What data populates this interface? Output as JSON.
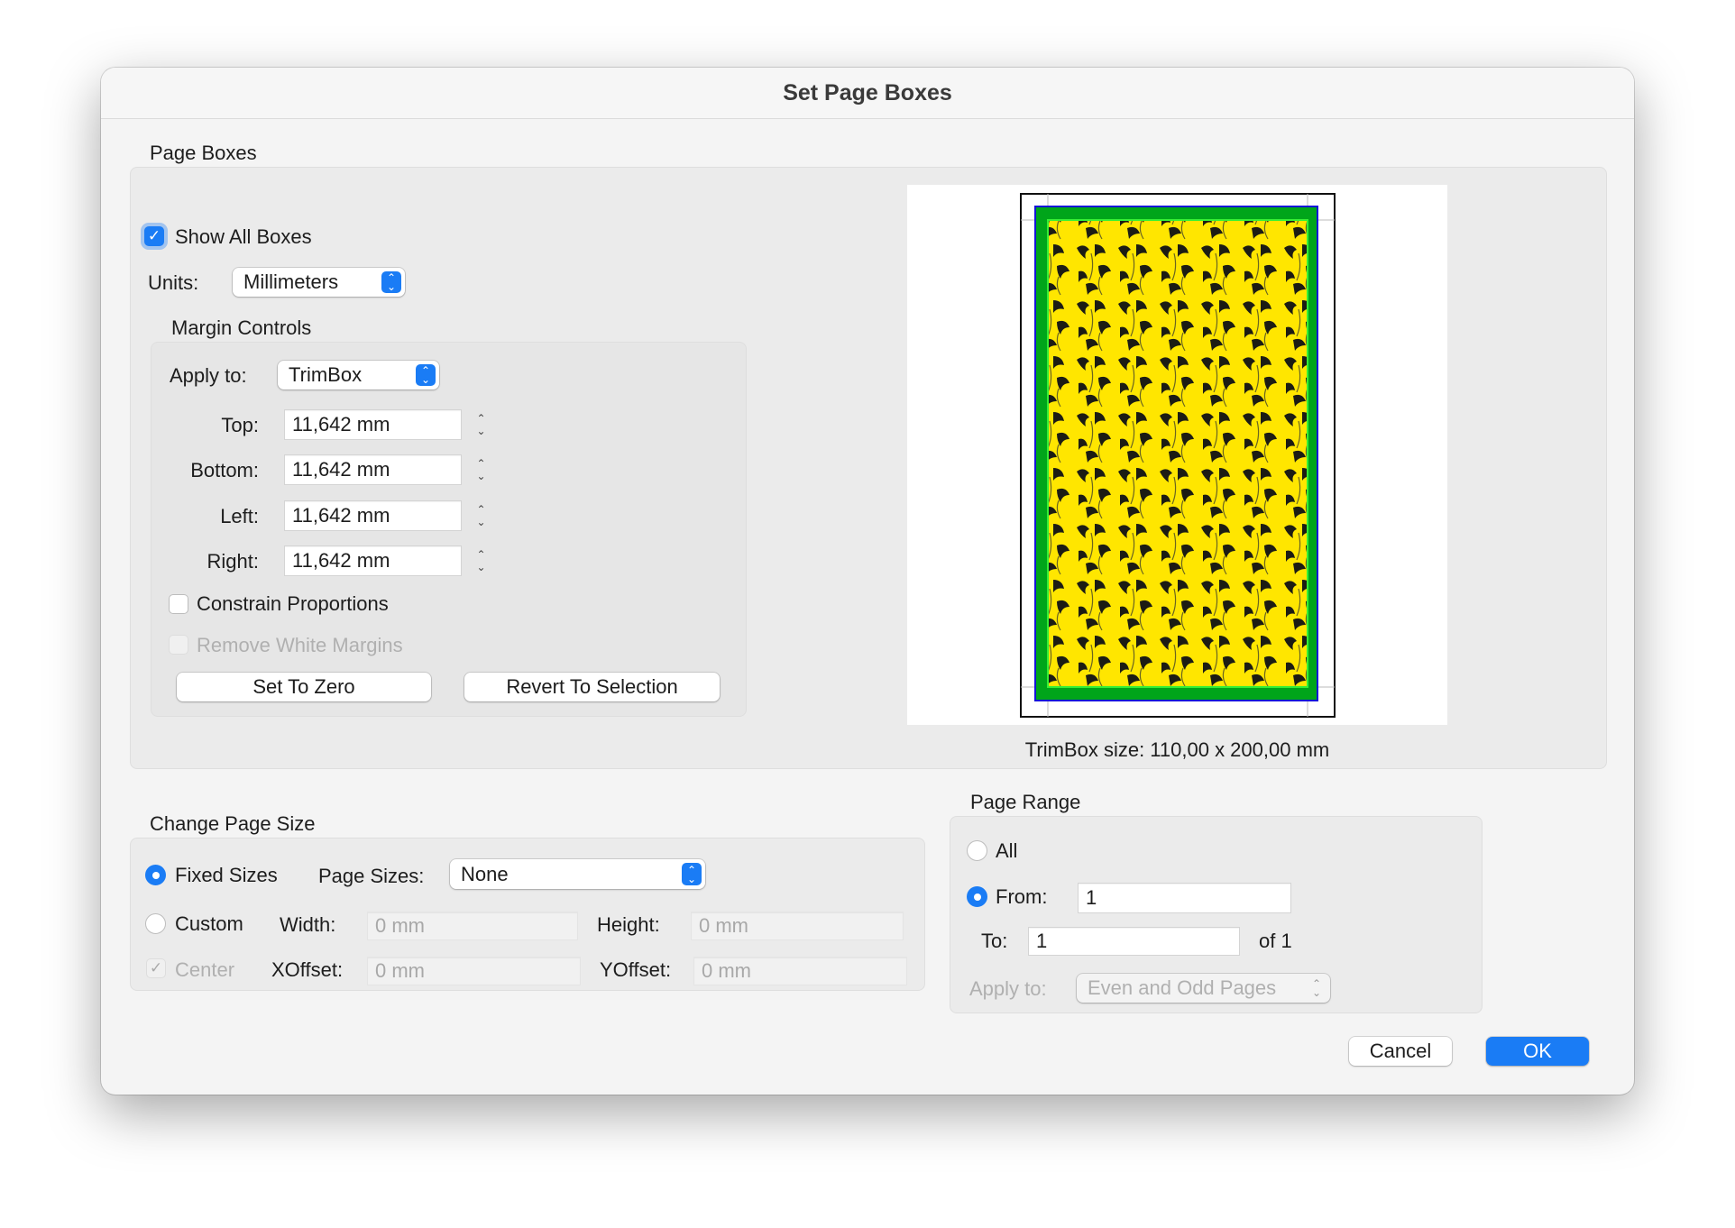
{
  "window": {
    "title": "Set Page Boxes"
  },
  "page_boxes": {
    "label": "Page Boxes",
    "show_all_boxes": {
      "label": "Show All Boxes",
      "checked": true
    },
    "units": {
      "label": "Units:",
      "value": "Millimeters"
    },
    "margin_controls": {
      "label": "Margin Controls",
      "apply_to": {
        "label": "Apply to:",
        "value": "TrimBox"
      },
      "fields": [
        {
          "label": "Top:",
          "value": "11,642 mm"
        },
        {
          "label": "Bottom:",
          "value": "11,642 mm"
        },
        {
          "label": "Left:",
          "value": "11,642 mm"
        },
        {
          "label": "Right:",
          "value": "11,642 mm"
        }
      ],
      "constrain_proportions": {
        "label": "Constrain Proportions",
        "checked": false
      },
      "remove_white_margins": {
        "label": "Remove White Margins",
        "checked": false,
        "enabled": false
      },
      "set_to_zero": "Set To Zero",
      "revert_to_selection": "Revert To Selection"
    },
    "preview": {
      "caption": "TrimBox size: 110,00 x 200,00 mm",
      "colors": {
        "bleed": "#1414d8",
        "trim": "#00a51a",
        "art": "#ffe600"
      }
    }
  },
  "change_page_size": {
    "label": "Change Page Size",
    "fixed_sizes": {
      "label": "Fixed Sizes",
      "selected": true
    },
    "page_sizes": {
      "label": "Page Sizes:",
      "value": "None"
    },
    "custom": {
      "label": "Custom",
      "selected": false
    },
    "width": {
      "label": "Width:",
      "placeholder": "0 mm"
    },
    "height": {
      "label": "Height:",
      "placeholder": "0 mm"
    },
    "center": {
      "label": "Center",
      "checked": true,
      "enabled": false
    },
    "xoffset": {
      "label": "XOffset:",
      "placeholder": "0 mm"
    },
    "yoffset": {
      "label": "YOffset:",
      "placeholder": "0 mm"
    }
  },
  "page_range": {
    "label": "Page Range",
    "all": {
      "label": "All",
      "selected": false
    },
    "from": {
      "label": "From:",
      "value": "1",
      "selected": true
    },
    "to": {
      "label": "To:",
      "value": "1"
    },
    "of": "of 1",
    "apply_to": {
      "label": "Apply to:",
      "value": "Even and Odd Pages"
    }
  },
  "buttons": {
    "cancel": "Cancel",
    "ok": "OK"
  },
  "accent": "#1a7cf5"
}
